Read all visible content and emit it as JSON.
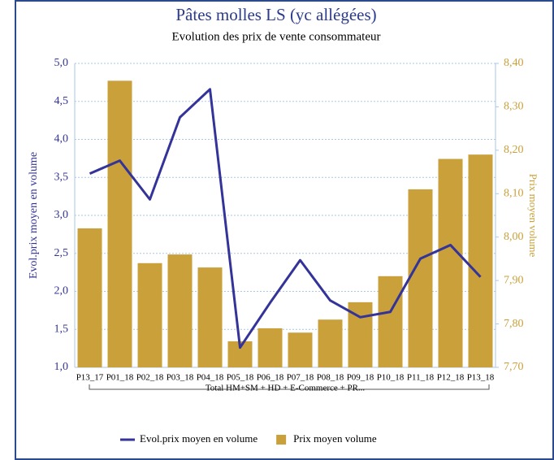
{
  "chart_data": {
    "type": "combo",
    "title": "Pâtes molles LS (yc allégées)",
    "subtitle": "Evolution des prix de vente consommateur",
    "y_label": "Evol.prix moyen en volume",
    "y2_label": "Prix moyen volume",
    "group_label": "Total HM+SM + HD + E-Commerce + PR...",
    "categories": [
      "P13_17",
      "P01_18",
      "P02_18",
      "P03_18",
      "P04_18",
      "P05_18",
      "P06_18",
      "P07_18",
      "P08_18",
      "P09_18",
      "P10_18",
      "P11_18",
      "P12_18",
      "P13_18"
    ],
    "series": [
      {
        "name": "Evol.prix moyen en volume",
        "type": "line",
        "color": "#333399",
        "values": [
          3.55,
          3.72,
          3.21,
          4.29,
          4.66,
          1.26,
          1.85,
          2.41,
          1.88,
          1.66,
          1.73,
          2.43,
          2.61,
          2.19
        ]
      },
      {
        "name": "Prix moyen volume",
        "type": "bar",
        "color": "#c9a03a",
        "axis": "y2",
        "values": [
          8.02,
          8.36,
          7.94,
          7.96,
          7.93,
          7.76,
          7.79,
          7.78,
          7.81,
          7.85,
          7.91,
          8.11,
          8.18,
          8.19
        ]
      }
    ],
    "ylim": [
      1.0,
      5.0
    ],
    "yticks": [
      {
        "value": 1.0,
        "label": "1,0"
      },
      {
        "value": 1.5,
        "label": "1,5"
      },
      {
        "value": 2.0,
        "label": "2,0"
      },
      {
        "value": 2.5,
        "label": "2,5"
      },
      {
        "value": 3.0,
        "label": "3,0"
      },
      {
        "value": 3.5,
        "label": "3,5"
      },
      {
        "value": 4.0,
        "label": "4,0"
      },
      {
        "value": 4.5,
        "label": "4,5"
      },
      {
        "value": 5.0,
        "label": "5,0"
      }
    ],
    "y2lim": [
      7.7,
      8.4
    ],
    "y2ticks": [
      {
        "value": 7.7,
        "label": "7,70"
      },
      {
        "value": 7.8,
        "label": "7,80"
      },
      {
        "value": 7.9,
        "label": "7,90"
      },
      {
        "value": 8.0,
        "label": "8,00"
      },
      {
        "value": 8.1,
        "label": "8,10"
      },
      {
        "value": 8.2,
        "label": "8,20"
      },
      {
        "value": 8.3,
        "label": "8,30"
      },
      {
        "value": 8.4,
        "label": "8,40"
      }
    ],
    "grid": true,
    "legend": "bottom"
  }
}
